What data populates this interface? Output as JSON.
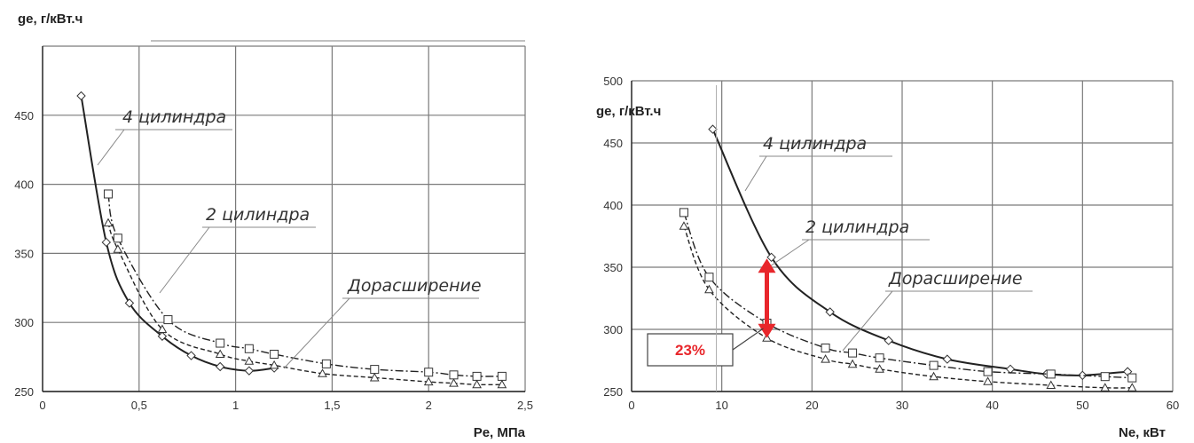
{
  "chart_data": [
    {
      "type": "line",
      "xlabel": "Pe, МПа",
      "ylabel": "ge, г/кВт.ч",
      "xlim": [
        0,
        2.5
      ],
      "ylim": [
        250,
        500
      ],
      "xticks": [
        "0",
        "0,5",
        "1",
        "1,5",
        "2",
        "2,5"
      ],
      "yticks": [
        "250",
        "300",
        "350",
        "400",
        "450"
      ],
      "grid": true,
      "series": [
        {
          "name": "4 цилиндра",
          "style": "solid",
          "marker": "diamond",
          "x": [
            0.2,
            0.33,
            0.45,
            0.62,
            0.77,
            0.92,
            1.07,
            1.2
          ],
          "y": [
            464,
            358,
            314,
            290,
            276,
            268,
            265,
            267
          ]
        },
        {
          "name": "2 цилиндра",
          "style": "dashdot",
          "marker": "square",
          "x": [
            0.34,
            0.39,
            0.65,
            0.92,
            1.07,
            1.2,
            1.47,
            1.72,
            2.0,
            2.13,
            2.25,
            2.38
          ],
          "y": [
            393,
            361,
            302,
            285,
            281,
            277,
            270,
            266,
            264,
            262,
            261,
            261
          ]
        },
        {
          "name": "Дорасширение",
          "style": "dashed",
          "marker": "triangle",
          "x": [
            0.34,
            0.39,
            0.62,
            0.92,
            1.07,
            1.2,
            1.45,
            1.72,
            2.0,
            2.13,
            2.25,
            2.38
          ],
          "y": [
            372,
            353,
            295,
            277,
            272,
            269,
            263,
            260,
            257,
            256,
            255,
            255
          ]
        }
      ]
    },
    {
      "type": "line",
      "xlabel": "Ne, кВт",
      "ylabel": "ge, г/кВт.ч",
      "xlim": [
        0,
        60
      ],
      "ylim": [
        250,
        500
      ],
      "xticks": [
        "0",
        "10",
        "20",
        "30",
        "40",
        "50",
        "60"
      ],
      "yticks": [
        "250",
        "300",
        "350",
        "400",
        "450",
        "500"
      ],
      "grid": true,
      "annotation": "23%",
      "annotation_color": "#e8262b",
      "arrow_range": [
        293,
        357
      ],
      "arrow_x": 15,
      "series": [
        {
          "name": "4 цилиндра",
          "style": "solid",
          "marker": "diamond",
          "x": [
            9,
            15.5,
            22,
            28.5,
            35,
            42,
            46,
            50,
            55
          ],
          "y": [
            461,
            358,
            314,
            291,
            276,
            268,
            264,
            263,
            266
          ]
        },
        {
          "name": "2 цилиндра",
          "style": "dashdot",
          "marker": "square",
          "x": [
            5.8,
            8.6,
            15,
            21.5,
            24.5,
            27.5,
            33.5,
            39.5,
            46.5,
            52.5,
            55.5
          ],
          "y": [
            394,
            342,
            305,
            285,
            281,
            277,
            271,
            266,
            264,
            262,
            261
          ]
        },
        {
          "name": "Дорасширение",
          "style": "dashed",
          "marker": "triangle",
          "x": [
            5.8,
            8.6,
            15,
            21.5,
            24.5,
            27.5,
            33.5,
            39.5,
            46.5,
            52.5,
            55.5
          ],
          "y": [
            383,
            332,
            293,
            276,
            272,
            268,
            262,
            258,
            255,
            253,
            253
          ]
        }
      ]
    }
  ]
}
